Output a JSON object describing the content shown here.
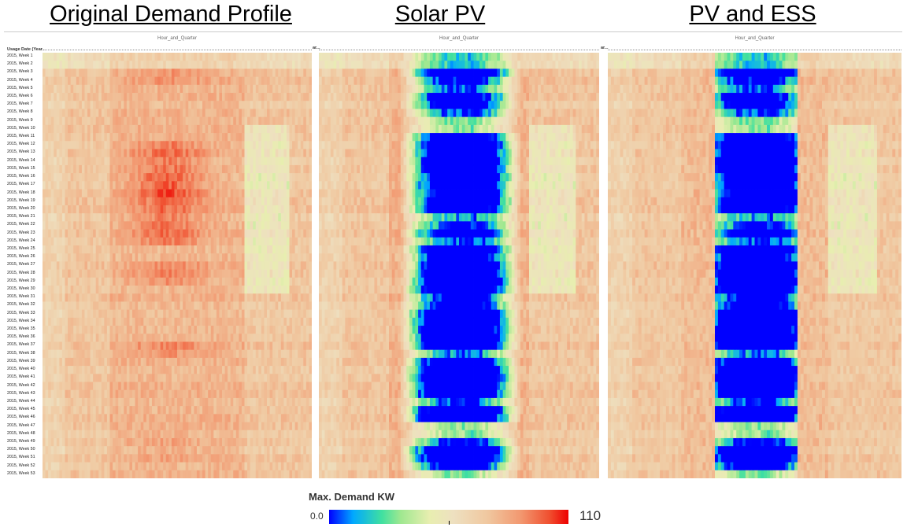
{
  "titles": {
    "panel1": "Original Demand Profile",
    "panel2": "Solar PV",
    "panel3": "PV and ESS"
  },
  "column_header": "Hour_and_Quarter",
  "row_header": "Usage Date (Year...",
  "row_header_short": "ar...",
  "legend": {
    "title": "Max. Demand KW",
    "min": "0.0",
    "max": "110"
  },
  "colors": {
    "low": "#0000ff",
    "mid": "#eee8c8",
    "high": "#ee0000"
  },
  "chart_data": [
    {
      "type": "heatmap",
      "title": "Original Demand Profile",
      "x_label": "Hour_and_Quarter",
      "y_label": "Usage Date (Year...",
      "y_categories_count": 53,
      "x_categories_count": 96,
      "value_range": [
        0,
        110
      ],
      "summary": "Demand between ~60 and ~110 KW; peaks (red) during midday hours in weeks 12-24 and 37-38; lower (green) in afternoon/evening of weeks 10-30."
    },
    {
      "type": "heatmap",
      "title": "Solar PV",
      "x_label": "Hour_and_Quarter",
      "value_range": [
        0,
        110
      ],
      "summary": "Midday demand reduced to near 0 (blue) by solar generation across most weeks; morning and evening similar to original."
    },
    {
      "type": "heatmap",
      "title": "PV and ESS",
      "x_label": "Hour_and_Quarter",
      "value_range": [
        0,
        110
      ],
      "summary": "Midday demand near 0 (blue) from solar; peaks shaved by storage so remaining hours are flattened to ~70-85 KW (pale orange)."
    }
  ],
  "weeks": [
    "2015, Week 1",
    "2015, Week 2",
    "2015, Week 3",
    "2015, Week 4",
    "2015, Week 5",
    "2015, Week 6",
    "2015, Week 7",
    "2015, Week 8",
    "2015, Week 9",
    "2015, Week 10",
    "2015, Week 11",
    "2015, Week 12",
    "2015, Week 13",
    "2015, Week 14",
    "2015, Week 15",
    "2015, Week 16",
    "2015, Week 17",
    "2015, Week 18",
    "2015, Week 19",
    "2015, Week 20",
    "2015, Week 21",
    "2015, Week 22",
    "2015, Week 23",
    "2015, Week 24",
    "2015, Week 25",
    "2015, Week 26",
    "2015, Week 27",
    "2015, Week 28",
    "2015, Week 29",
    "2015, Week 30",
    "2015, Week 31",
    "2015, Week 32",
    "2015, Week 33",
    "2015, Week 34",
    "2015, Week 35",
    "2015, Week 36",
    "2015, Week 37",
    "2015, Week 38",
    "2015, Week 39",
    "2015, Week 40",
    "2015, Week 41",
    "2015, Week 42",
    "2015, Week 43",
    "2015, Week 44",
    "2015, Week 45",
    "2015, Week 46",
    "2015, Week 47",
    "2015, Week 48",
    "2015, Week 49",
    "2015, Week 50",
    "2015, Week 51",
    "2015, Week 52",
    "2015, Week 53"
  ]
}
